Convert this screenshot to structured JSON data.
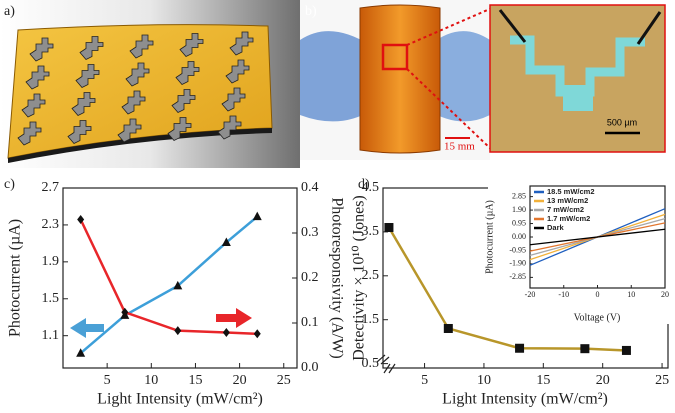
{
  "panels": {
    "a": "a)",
    "b": "b)",
    "c": "c)",
    "d": "d)",
    "scale_photo": "15 mm",
    "scale_micro": "500 µm"
  },
  "chart_data": [
    {
      "type": "line",
      "xlabel": "Light Intensity (mW/cm²)",
      "ylabel": "Photocurrent (µA)",
      "y2label": "Photoresponsivity (A/W)",
      "xlim": [
        0,
        26.5
      ],
      "xticks": [
        5,
        10,
        15,
        20,
        25
      ],
      "ylim": [
        0.75,
        2.7
      ],
      "yticks": [
        1.1,
        1.5,
        1.9,
        2.3,
        2.7
      ],
      "y2lim": [
        0,
        0.4
      ],
      "y2ticks": [
        {
          "value": 0,
          "label": "0.0"
        },
        0.1,
        0.2,
        0.3,
        0.4
      ],
      "series": [
        {
          "color": "#3d9fd9",
          "marker": "triangle",
          "x": [
            2,
            7,
            13,
            18.5,
            22
          ],
          "values": [
            0.91,
            1.32,
            1.64,
            2.11,
            2.39
          ]
        },
        {
          "color": "#e8262a",
          "marker": "diamond",
          "axis": "y2",
          "x": [
            2,
            7,
            13,
            18.5,
            22
          ],
          "values": [
            0.33,
            0.124,
            0.083,
            0.079,
            0.076
          ]
        }
      ]
    },
    {
      "type": "line",
      "xlabel": "Light Intensity (mW/cm²)",
      "ylabel": "Detectivity × 10¹⁰ (Jones)",
      "xlim": [
        1.5,
        25.5
      ],
      "xticks": [
        5,
        10,
        15,
        20,
        25
      ],
      "ylim": [
        0.4,
        4.5
      ],
      "yticks": [
        0.5,
        1.5,
        2.5,
        3.5,
        4.5
      ],
      "series": [
        {
          "color": "#b8962a",
          "marker": "square",
          "x": [
            2,
            7,
            13,
            18.5,
            22
          ],
          "values": [
            3.6,
            1.3,
            0.85,
            0.84,
            0.8
          ]
        }
      ]
    },
    {
      "type": "line",
      "xlabel": "Voltage (V)",
      "ylabel": "Photocurrent (µA)",
      "xlim": [
        -20,
        20
      ],
      "xticks": [
        -20,
        -10,
        0,
        10,
        20
      ],
      "ylim": [
        -3.6,
        3.6
      ],
      "yticks": [
        2.85,
        {
          "value": 1.9,
          "label": "1.90"
        },
        0.95,
        {
          "value": 0,
          "label": "0.00"
        },
        -0.95,
        {
          "value": -1.9,
          "label": "-1.90"
        },
        -2.85
      ],
      "legend": "upper left",
      "series": [
        {
          "name": "18.5 mW/cm2",
          "color": "#1f5fbf",
          "x": [
            -20,
            20
          ],
          "values": [
            -2.0,
            2.0
          ]
        },
        {
          "name": "13 mW/cm2",
          "color": "#f2b13a",
          "x": [
            -20,
            20
          ],
          "values": [
            -1.6,
            1.6
          ]
        },
        {
          "name": "7 mW/cm2",
          "color": "#a8a8a8",
          "x": [
            -20,
            20
          ],
          "values": [
            -1.3,
            1.3
          ]
        },
        {
          "name": "1.7 mW/cm2",
          "color": "#e2762e",
          "x": [
            -20,
            20
          ],
          "values": [
            -1.0,
            1.0
          ]
        },
        {
          "name": "Dark",
          "color": "#000000",
          "x": [
            -20,
            20
          ],
          "values": [
            -0.55,
            0.55
          ]
        }
      ]
    }
  ]
}
